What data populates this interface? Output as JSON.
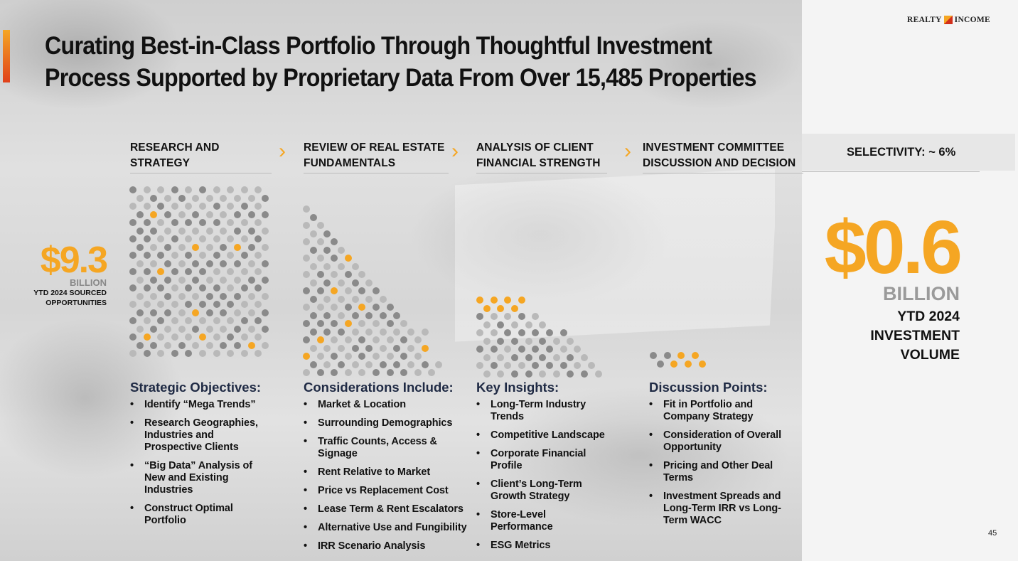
{
  "title": "Curating Best-in-Class Portfolio Through Thoughtful Investment Process Supported by Proprietary Data From Over 15,485 Properties",
  "logo": {
    "left": "REALTY",
    "right": "INCOME"
  },
  "steps": [
    {
      "label": "RESEARCH AND STRATEGY"
    },
    {
      "label": "REVIEW OF REAL ESTATE FUNDAMENTALS"
    },
    {
      "label": "ANALYSIS OF CLIENT FINANCIAL STRENGTH"
    },
    {
      "label": "INVESTMENT COMMITTEE DISCUSSION AND DECISION"
    }
  ],
  "selectivity": "SELECTIVITY: ~ 6%",
  "sourced": {
    "amount": "$9.3",
    "unit": "BILLION",
    "desc": "YTD 2024 SOURCED OPPORTUNITIES"
  },
  "investment": {
    "amount": "$0.6",
    "unit": "BILLION",
    "desc": "YTD 2024 INVESTMENT VOLUME"
  },
  "columns": [
    {
      "heading": "Strategic Objectives:",
      "items": [
        "Identify “Mega Trends”",
        "Research Geographies, Industries and Prospective Clients",
        "“Big Data” Analysis of New and Existing Industries",
        "Construct Optimal Portfolio"
      ]
    },
    {
      "heading": "Considerations Include:",
      "items": [
        "Market & Location",
        "Surrounding Demographics",
        "Traffic Counts, Access & Signage",
        "Rent Relative to Market",
        "Price vs Replacement Cost",
        "Lease Term & Rent Escalators",
        "Alternative Use and Fungibility",
        "IRR Scenario Analysis"
      ]
    },
    {
      "heading": "Key Insights:",
      "items": [
        "Long-Term Industry Trends",
        "Competitive Landscape",
        "Corporate Financial Profile",
        "Client’s Long-Term Growth Strategy",
        "Store-Level Performance",
        "ESG Metrics"
      ]
    },
    {
      "heading": "Discussion Points:",
      "items": [
        "Fit in Portfolio and Company Strategy",
        "Consideration of Overall Opportunity",
        "Pricing and Other Deal Terms",
        "Investment Spreads and Long-Term IRR vs Long-Term WACC"
      ]
    }
  ],
  "page_number": "45",
  "colors": {
    "accent": "#f5a623",
    "heading_navy": "#1f2a44",
    "dot_dark": "#8a8a8a",
    "dot_light": "#b9b9b9"
  }
}
